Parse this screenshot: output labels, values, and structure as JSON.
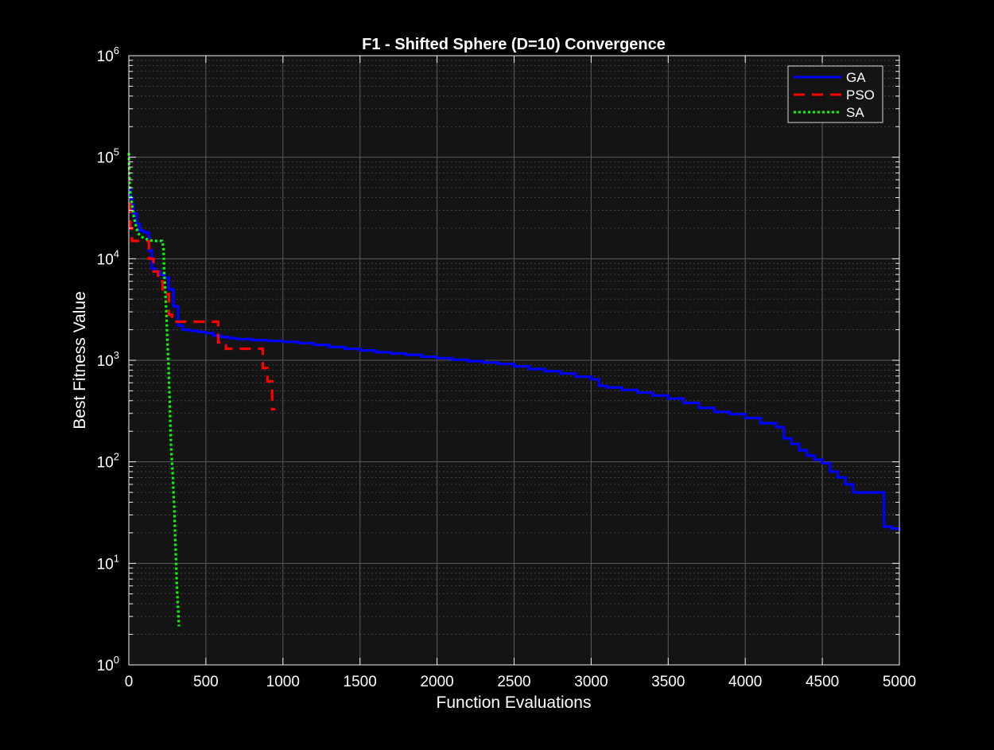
{
  "chart_data": {
    "type": "line",
    "title": "F1 - Shifted Sphere (D=10) Convergence",
    "xlabel": "Function Evaluations",
    "ylabel": "Best Fitness Value",
    "xlim": [
      0,
      5000
    ],
    "ylim": [
      1,
      1000000
    ],
    "yscale": "log",
    "grid": true,
    "minor_grid": true,
    "legend_position": "top-right",
    "background_color": "#000000",
    "axes_color": "#141414",
    "x_ticks": [
      0,
      500,
      1000,
      1500,
      2000,
      2500,
      3000,
      3500,
      4000,
      4500,
      5000
    ],
    "x_tick_labels": [
      "0",
      "500",
      "1000",
      "1500",
      "2000",
      "2500",
      "3000",
      "3500",
      "4000",
      "4500",
      "5000"
    ],
    "y_ticks": [
      1,
      10,
      100,
      1000,
      10000,
      100000,
      1000000
    ],
    "y_tick_labels": [
      {
        "base": "10",
        "exp": "0"
      },
      {
        "base": "10",
        "exp": "1"
      },
      {
        "base": "10",
        "exp": "2"
      },
      {
        "base": "10",
        "exp": "3"
      },
      {
        "base": "10",
        "exp": "4"
      },
      {
        "base": "10",
        "exp": "5"
      },
      {
        "base": "10",
        "exp": "6"
      }
    ],
    "series": [
      {
        "name": "GA",
        "color": "#0000ff",
        "style": "solid",
        "x": [
          0,
          10,
          20,
          30,
          50,
          70,
          90,
          110,
          130,
          150,
          170,
          200,
          230,
          260,
          290,
          320,
          350,
          400,
          450,
          500,
          550,
          600,
          650,
          700,
          800,
          900,
          1000,
          1100,
          1200,
          1300,
          1400,
          1500,
          1600,
          1700,
          1800,
          1900,
          2000,
          2100,
          2200,
          2300,
          2400,
          2500,
          2600,
          2700,
          2800,
          2900,
          3000,
          3050,
          3100,
          3200,
          3300,
          3400,
          3500,
          3600,
          3700,
          3800,
          3900,
          4000,
          4100,
          4200,
          4250,
          4300,
          4350,
          4400,
          4450,
          4500,
          4550,
          4600,
          4650,
          4700,
          4750,
          4800,
          4850,
          4900,
          4950,
          5000
        ],
        "y": [
          50000,
          40000,
          34000,
          28000,
          22000,
          19000,
          18500,
          18000,
          12000,
          8000,
          7500,
          7000,
          6500,
          5000,
          3400,
          2200,
          2000,
          1950,
          1900,
          1850,
          1750,
          1700,
          1650,
          1620,
          1580,
          1550,
          1520,
          1480,
          1420,
          1350,
          1300,
          1250,
          1200,
          1170,
          1130,
          1080,
          1050,
          1010,
          980,
          950,
          920,
          870,
          820,
          780,
          740,
          690,
          650,
          560,
          540,
          510,
          480,
          450,
          420,
          380,
          340,
          310,
          295,
          270,
          240,
          220,
          170,
          150,
          130,
          115,
          105,
          97,
          80,
          70,
          60,
          50,
          50,
          50,
          50,
          23,
          22,
          21
        ]
      },
      {
        "name": "PSO",
        "color": "#ff0000",
        "style": "dashed",
        "x": [
          0,
          10,
          20,
          40,
          60,
          90,
          120,
          130,
          160,
          190,
          220,
          250,
          260,
          280,
          300,
          340,
          380,
          420,
          460,
          500,
          540,
          570,
          580,
          600,
          630,
          650,
          700,
          750,
          800,
          850,
          870,
          900,
          930,
          950
        ],
        "y": [
          35000,
          20000,
          15000,
          15000,
          15000,
          15000,
          15000,
          10000,
          7500,
          6000,
          5000,
          4500,
          2800,
          2400,
          2400,
          2400,
          2400,
          2400,
          2400,
          2400,
          2400,
          2400,
          1500,
          1400,
          1300,
          1300,
          1300,
          1300,
          1300,
          1300,
          840,
          620,
          330,
          330
        ]
      },
      {
        "name": "SA",
        "color": "#00ff00",
        "style": "dotted",
        "x": [
          0,
          3,
          6,
          10,
          20,
          30,
          40,
          50,
          60,
          70,
          80,
          100,
          120,
          140,
          160,
          180,
          200,
          215,
          225,
          230,
          240,
          245,
          250,
          255,
          260,
          265,
          270,
          275,
          280,
          285,
          290,
          295,
          300,
          305,
          310,
          315,
          320,
          325
        ],
        "y": [
          110000,
          75000,
          55000,
          45000,
          35000,
          27000,
          23000,
          20000,
          18000,
          17000,
          16500,
          16000,
          15500,
          15200,
          15000,
          15000,
          15000,
          15000,
          13000,
          7000,
          4000,
          2500,
          1600,
          1100,
          700,
          400,
          220,
          130,
          100,
          75,
          50,
          35,
          20,
          12,
          7,
          5,
          3.5,
          2.4
        ]
      }
    ]
  }
}
